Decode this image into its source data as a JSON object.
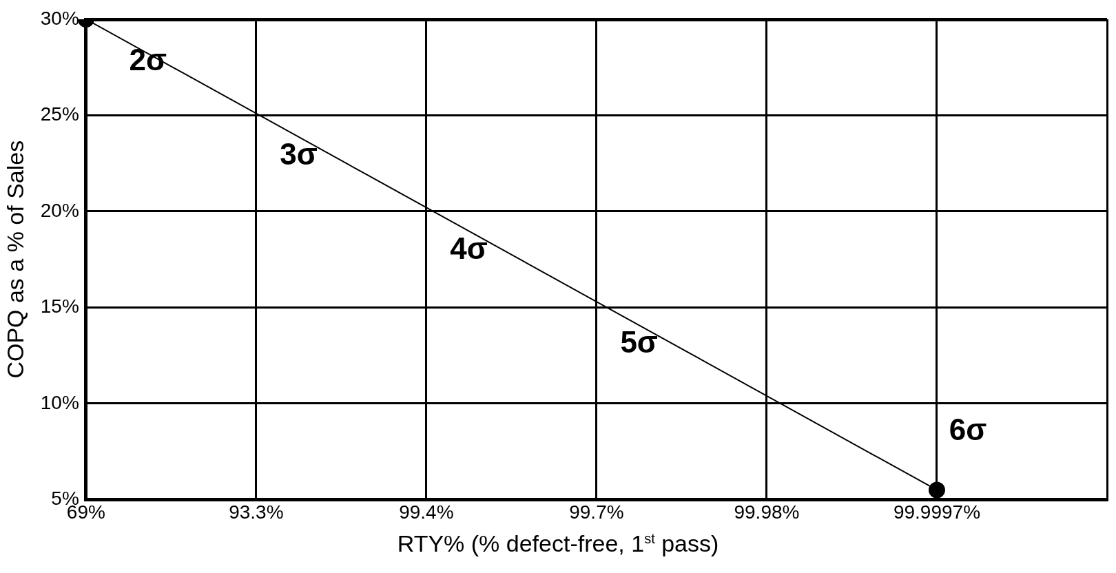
{
  "chart_data": {
    "type": "line",
    "xlabel": "RTY% (% defect-free, 1$^{st}$ pass)",
    "ylabel": "COPQ as a % of Sales",
    "categories": [
      "69%",
      "93.3%",
      "99.4%",
      "99.7%",
      "99.98%",
      "99.9997%",
      null
    ],
    "series": [
      {
        "color": "#000000",
        "values": [
          30,
          null,
          null,
          null,
          null,
          5.5,
          null
        ]
      }
    ],
    "ylim": [
      5,
      30
    ],
    "yticks": [
      {
        "value": 5,
        "label": "5%"
      },
      {
        "value": 10,
        "label": "10%"
      },
      {
        "value": 15,
        "label": "15%"
      },
      {
        "value": 20,
        "label": "20%"
      },
      {
        "value": 25,
        "label": "25%"
      },
      {
        "value": 30,
        "label": "30%"
      }
    ],
    "annotations": [
      "2σ",
      "3σ",
      "4σ",
      "5σ",
      "6σ"
    ],
    "grid": true,
    "marker": "circle",
    "line_style": "solid"
  }
}
